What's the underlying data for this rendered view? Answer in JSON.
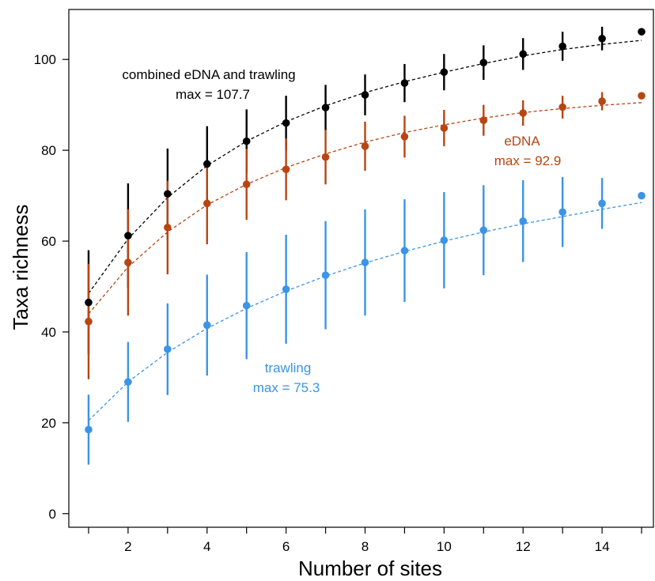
{
  "chart_data": {
    "type": "scatter",
    "xlabel": "Number of sites",
    "ylabel": "Taxa richness",
    "xlim": [
      0.5,
      15.3
    ],
    "ylim": [
      -3,
      111
    ],
    "x_ticks": [
      1,
      2,
      3,
      4,
      5,
      6,
      7,
      8,
      9,
      10,
      11,
      12,
      13,
      14,
      15
    ],
    "x_tick_labels": [
      "2",
      "4",
      "6",
      "8",
      "10",
      "12",
      "14"
    ],
    "x_tick_label_values": [
      2,
      4,
      6,
      8,
      10,
      12,
      14
    ],
    "y_ticks": [
      0,
      20,
      40,
      60,
      80,
      100
    ],
    "y_tick_labels": [
      "0",
      "20",
      "40",
      "60",
      "80",
      "100"
    ],
    "grid": false,
    "series": [
      {
        "key": "combined",
        "color": "#000000",
        "x": [
          1,
          2,
          3,
          4,
          5,
          6,
          7,
          8,
          9,
          10,
          11,
          12,
          13,
          14,
          15
        ],
        "y": [
          46.5,
          61.2,
          70.4,
          77.0,
          82.0,
          86.0,
          89.4,
          92.2,
          94.8,
          97.2,
          99.3,
          101.2,
          102.9,
          104.6,
          106.1
        ],
        "err": [
          11.5,
          11.5,
          10.0,
          8.3,
          7.0,
          6.0,
          5.0,
          4.5,
          4.2,
          4.0,
          3.8,
          3.5,
          3.2,
          2.6,
          0
        ],
        "fit": [
          48.5,
          60.5,
          69.6,
          76.6,
          82.0,
          86.3,
          89.8,
          92.7,
          95.1,
          97.2,
          99.1,
          100.8,
          102.2,
          103.3,
          104.2
        ],
        "annotation": [
          "combined eDNA and trawling",
          "max = 107.7"
        ]
      },
      {
        "key": "edna",
        "color": "#B84512",
        "x": [
          1,
          2,
          3,
          4,
          5,
          6,
          7,
          8,
          9,
          10,
          11,
          12,
          13,
          14,
          15
        ],
        "y": [
          42.3,
          55.3,
          63.0,
          68.3,
          72.5,
          75.8,
          78.5,
          80.9,
          83.0,
          84.9,
          86.6,
          88.2,
          89.5,
          90.8,
          92.0
        ],
        "err": [
          12.7,
          11.7,
          10.3,
          9.0,
          7.8,
          6.8,
          6.0,
          5.4,
          4.6,
          4.0,
          3.4,
          2.8,
          2.5,
          2.0,
          0
        ],
        "fit": [
          44.0,
          54.3,
          62.0,
          68.0,
          72.5,
          76.2,
          79.2,
          81.8,
          83.9,
          85.6,
          87.1,
          88.3,
          89.2,
          89.9,
          90.5
        ],
        "annotation": [
          "eDNA",
          "max = 92.9"
        ]
      },
      {
        "key": "trawling",
        "color": "#3B94E6",
        "x": [
          1,
          2,
          3,
          4,
          5,
          6,
          7,
          8,
          9,
          10,
          11,
          12,
          13,
          14,
          15
        ],
        "y": [
          18.5,
          29.0,
          36.2,
          41.5,
          45.8,
          49.4,
          52.5,
          55.3,
          57.9,
          60.2,
          62.4,
          64.4,
          66.4,
          68.3,
          70.0
        ],
        "err": [
          7.7,
          8.8,
          10.1,
          11.1,
          11.8,
          12.0,
          11.9,
          11.7,
          11.3,
          10.6,
          9.9,
          9.0,
          7.7,
          5.6,
          0
        ],
        "fit": [
          20.5,
          29.0,
          35.5,
          40.8,
          45.2,
          49.0,
          52.3,
          55.2,
          57.7,
          60.0,
          62.0,
          63.8,
          65.4,
          67.0,
          68.5
        ],
        "annotation": [
          "trawling",
          "max = 75.3"
        ]
      }
    ]
  }
}
